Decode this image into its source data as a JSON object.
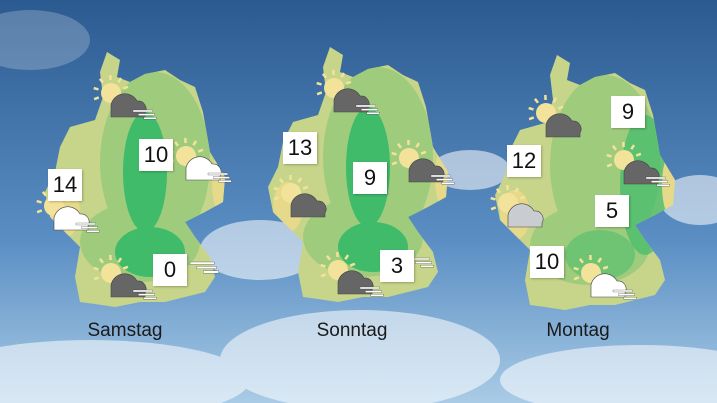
{
  "colors": {
    "sky_top": "#2f5e94",
    "sky_bottom": "#9cc4e4",
    "map_light": "#c7d58a",
    "map_mid": "#9fcc7c",
    "map_dark": "#3fbb6a",
    "map_yellow": "#e6d98a",
    "sun": "#f3e39a",
    "cloud_dark": "#666666",
    "cloud_light": "#c9ccd0",
    "cloud_white": "#ffffff"
  },
  "maps": [
    {
      "day": "Samstag",
      "temps": [
        "14",
        "10",
        "0"
      ],
      "icons": [
        {
          "type": "sun-cloud-dark",
          "wind": true
        },
        {
          "type": "sun-cloud-white",
          "wind": true
        },
        {
          "type": "sun-cloud-white",
          "wind": true
        },
        {
          "type": "sun-cloud-dark",
          "wind": true
        }
      ]
    },
    {
      "day": "Sonntag",
      "temps": [
        "13",
        "9",
        "3"
      ],
      "icons": [
        {
          "type": "sun-cloud-dark",
          "wind": true
        },
        {
          "type": "sun-cloud-dark",
          "wind": true
        },
        {
          "type": "sun-cloud-dark",
          "wind": false
        },
        {
          "type": "sun-cloud-dark",
          "wind": true
        }
      ]
    },
    {
      "day": "Montag",
      "temps": [
        "9",
        "12",
        "5",
        "10"
      ],
      "icons": [
        {
          "type": "sun-cloud-dark",
          "wind": false
        },
        {
          "type": "sun-cloud-dark",
          "wind": true
        },
        {
          "type": "sun-cloud-light",
          "wind": false
        },
        {
          "type": "sun-cloud-white",
          "wind": true
        }
      ]
    }
  ]
}
